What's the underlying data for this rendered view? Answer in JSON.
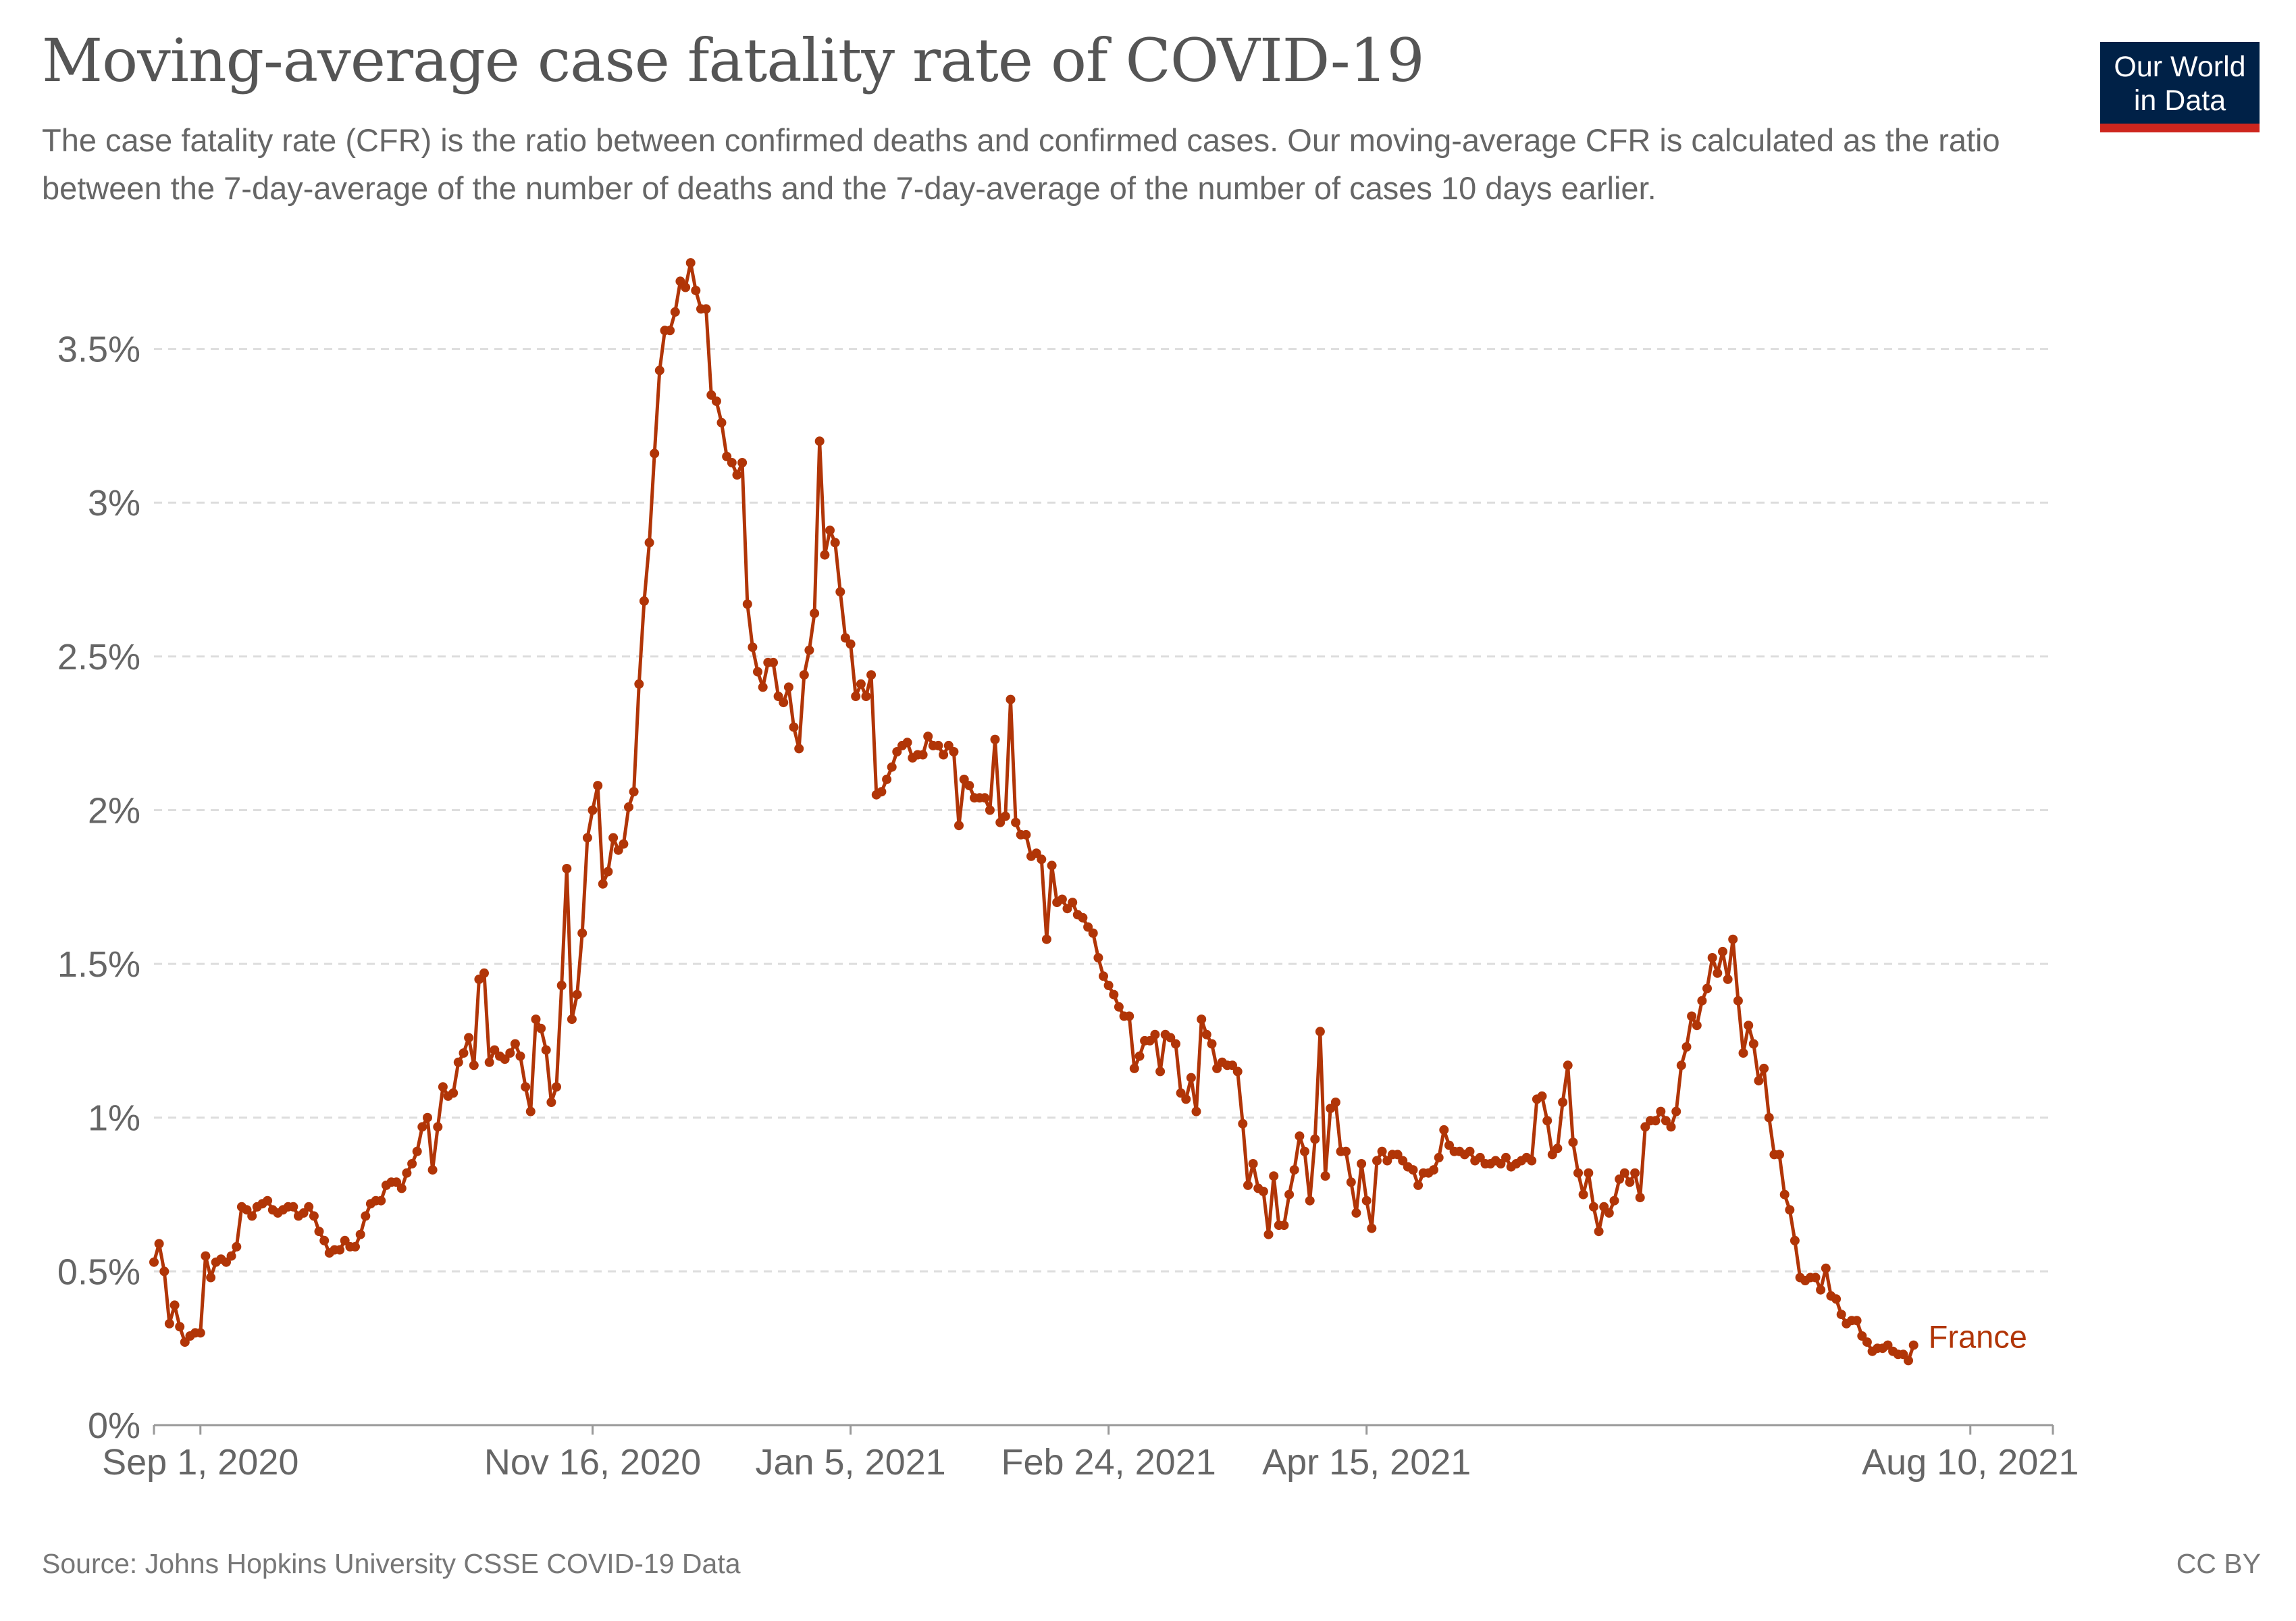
{
  "title": "Moving-average case fatality rate of COVID-19",
  "subtitle": "The case fatality rate (CFR) is the ratio between confirmed deaths and confirmed cases. Our moving-average CFR is calculated as the ratio between the 7-day-average of the number of deaths and the 7-day-average of the number of cases 10 days earlier.",
  "logo": {
    "line1": "Our World",
    "line2": "in Data"
  },
  "source": "Source: Johns Hopkins University CSSE COVID-19 Data",
  "license": "CC BY",
  "colors": {
    "series": "#b13507",
    "grid": "#dddddd",
    "axis": "#999999",
    "text": "#666666",
    "logo_bg": "#002147",
    "logo_accent": "#ce261e"
  },
  "chart_data": {
    "type": "line",
    "ylim": [
      0,
      3.8
    ],
    "yticks": [
      0,
      0.5,
      1,
      1.5,
      2,
      2.5,
      3,
      3.5
    ],
    "ytick_labels": [
      "0%",
      "0.5%",
      "1%",
      "1.5%",
      "2%",
      "2.5%",
      "3%",
      "3.5%"
    ],
    "xlim": [
      "2020-08-23",
      "2021-08-26"
    ],
    "xticks": [
      "2020-09-01",
      "2020-11-16",
      "2021-01-05",
      "2021-02-24",
      "2021-04-15",
      "2021-08-10"
    ],
    "xtick_labels": [
      "Sep 1, 2020",
      "Nov 16, 2020",
      "Jan 5, 2021",
      "Feb 24, 2021",
      "Apr 15, 2021",
      "Aug 10, 2021"
    ],
    "grid": true,
    "series": [
      {
        "name": "France",
        "x_start": "2020-08-23",
        "step_days": 1,
        "values": [
          0.53,
          0.59,
          0.5,
          0.33,
          0.39,
          0.32,
          0.27,
          0.29,
          0.3,
          0.3,
          0.55,
          0.48,
          0.53,
          0.54,
          0.53,
          0.55,
          0.58,
          0.71,
          0.7,
          0.68,
          0.71,
          0.72,
          0.73,
          0.7,
          0.69,
          0.7,
          0.71,
          0.71,
          0.68,
          0.69,
          0.71,
          0.68,
          0.63,
          0.6,
          0.56,
          0.57,
          0.57,
          0.6,
          0.58,
          0.58,
          0.62,
          0.68,
          0.72,
          0.73,
          0.73,
          0.78,
          0.79,
          0.79,
          0.77,
          0.82,
          0.85,
          0.89,
          0.97,
          1.0,
          0.83,
          0.97,
          1.1,
          1.07,
          1.08,
          1.18,
          1.21,
          1.26,
          1.17,
          1.45,
          1.47,
          1.18,
          1.22,
          1.2,
          1.19,
          1.21,
          1.24,
          1.2,
          1.1,
          1.02,
          1.32,
          1.29,
          1.22,
          1.05,
          1.1,
          1.43,
          1.81,
          1.32,
          1.4,
          1.6,
          1.91,
          2.0,
          2.08,
          1.76,
          1.8,
          1.91,
          1.87,
          1.89,
          2.01,
          2.06,
          2.41,
          2.68,
          2.87,
          3.16,
          3.43,
          3.56,
          3.56,
          3.62,
          3.72,
          3.7,
          3.78,
          3.69,
          3.63,
          3.63,
          3.35,
          3.33,
          3.26,
          3.15,
          3.13,
          3.09,
          3.13,
          2.67,
          2.53,
          2.45,
          2.4,
          2.48,
          2.48,
          2.37,
          2.35,
          2.4,
          2.27,
          2.2,
          2.44,
          2.52,
          2.64,
          3.2,
          2.83,
          2.91,
          2.87,
          2.71,
          2.56,
          2.54,
          2.37,
          2.41,
          2.37,
          2.44,
          2.05,
          2.06,
          2.1,
          2.14,
          2.19,
          2.21,
          2.22,
          2.17,
          2.18,
          2.18,
          2.24,
          2.21,
          2.21,
          2.18,
          2.21,
          2.19,
          1.95,
          2.1,
          2.08,
          2.04,
          2.04,
          2.04,
          2.0,
          2.23,
          1.96,
          1.98,
          2.36,
          1.96,
          1.92,
          1.92,
          1.85,
          1.86,
          1.84,
          1.58,
          1.82,
          1.7,
          1.71,
          1.68,
          1.7,
          1.66,
          1.65,
          1.62,
          1.6,
          1.52,
          1.46,
          1.43,
          1.4,
          1.36,
          1.33,
          1.33,
          1.16,
          1.2,
          1.25,
          1.25,
          1.27,
          1.15,
          1.27,
          1.26,
          1.24,
          1.08,
          1.06,
          1.13,
          1.02,
          1.32,
          1.27,
          1.24,
          1.16,
          1.18,
          1.17,
          1.17,
          1.15,
          0.98,
          0.78,
          0.85,
          0.77,
          0.76,
          0.62,
          0.81,
          0.65,
          0.65,
          0.75,
          0.83,
          0.94,
          0.89,
          0.73,
          0.93,
          1.28,
          0.81,
          1.03,
          1.05,
          0.89,
          0.89,
          0.79,
          0.69,
          0.85,
          0.73,
          0.64,
          0.86,
          0.89,
          0.86,
          0.88,
          0.88,
          0.86,
          0.84,
          0.83,
          0.78,
          0.82,
          0.82,
          0.83,
          0.87,
          0.96,
          0.91,
          0.89,
          0.89,
          0.88,
          0.89,
          0.86,
          0.87,
          0.85,
          0.85,
          0.86,
          0.85,
          0.87,
          0.84,
          0.85,
          0.86,
          0.87,
          0.86,
          1.06,
          1.07,
          0.99,
          0.88,
          0.9,
          1.05,
          1.17,
          0.92,
          0.82,
          0.75,
          0.82,
          0.71,
          0.63,
          0.71,
          0.69,
          0.73,
          0.8,
          0.82,
          0.79,
          0.82,
          0.74,
          0.97,
          0.99,
          0.99,
          1.02,
          0.99,
          0.97,
          1.02,
          1.17,
          1.23,
          1.33,
          1.3,
          1.38,
          1.42,
          1.52,
          1.47,
          1.54,
          1.45,
          1.58,
          1.38,
          1.21,
          1.3,
          1.24,
          1.12,
          1.16,
          1.0,
          0.88,
          0.88,
          0.75,
          0.7,
          0.6,
          0.48,
          0.47,
          0.48,
          0.48,
          0.44,
          0.51,
          0.42,
          0.41,
          0.36,
          0.33,
          0.34,
          0.34,
          0.29,
          0.27,
          0.24,
          0.25,
          0.25,
          0.26,
          0.24,
          0.23,
          0.23,
          0.21,
          0.26
        ]
      }
    ]
  }
}
